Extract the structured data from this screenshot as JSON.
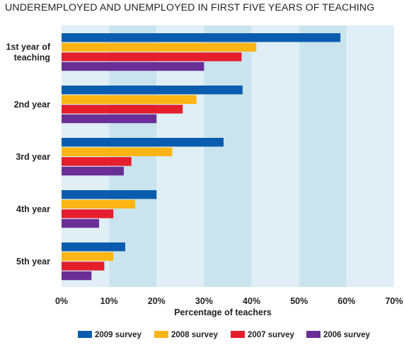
{
  "chart_data": {
    "type": "bar",
    "orientation": "horizontal",
    "title": "UNDEREMPLOYED AND UNEMPLOYED IN FIRST FIVE YEARS OF TEACHING",
    "xlabel": "Percentage of teachers",
    "ylabel": "",
    "xlim": [
      0,
      70
    ],
    "x_ticks": [
      "0%",
      "10%",
      "20%",
      "30%",
      "40%",
      "50%",
      "60%",
      "70%"
    ],
    "categories": [
      [
        "1st year of",
        "teaching"
      ],
      [
        "2nd year"
      ],
      [
        "3rd year"
      ],
      [
        "4th year"
      ],
      [
        "5th year"
      ]
    ],
    "series": [
      {
        "name": "2009 survey",
        "color": "#0a5cae",
        "values": [
          58.7,
          38.1,
          34.1,
          20.0,
          13.4
        ]
      },
      {
        "name": "2008 survey",
        "color": "#fdb515",
        "values": [
          41.0,
          28.4,
          23.3,
          15.5,
          10.9
        ]
      },
      {
        "name": "2007 survey",
        "color": "#e41e2b",
        "values": [
          37.9,
          25.5,
          14.7,
          10.9,
          9.0
        ]
      },
      {
        "name": "2006 survey",
        "color": "#6a2f96",
        "values": [
          30.0,
          20.0,
          13.1,
          7.9,
          6.3
        ]
      }
    ],
    "grid": "alternating vertical bands",
    "band_colors": [
      "#dfeff5",
      "#c9e4ee"
    ],
    "legend_position": "bottom"
  }
}
